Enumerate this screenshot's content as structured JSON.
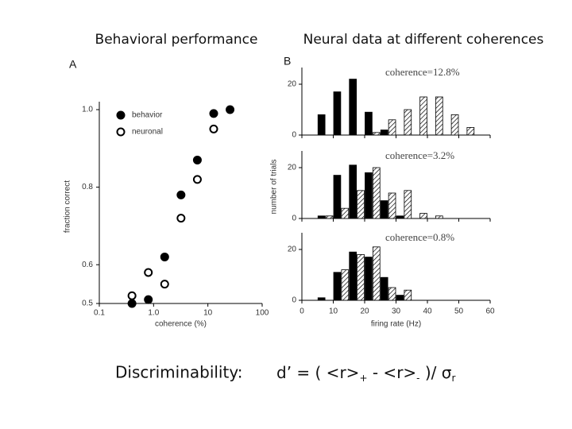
{
  "slide": {
    "titles": [
      "Behavioral performance",
      "Neural data at different coherences"
    ],
    "discriminability": "Discriminability:",
    "formula": [
      "d’ = ( <r>",
      "+",
      " - <r>",
      "-",
      " )/ σ",
      "r"
    ]
  },
  "chart_data": [
    {
      "type": "scatter",
      "panel_label": "A",
      "xlabel": "coherence (%)",
      "ylabel": "fraction correct",
      "xscale": "log",
      "xlim": [
        0.1,
        100
      ],
      "xticks": [
        0.1,
        {
          "value": 1,
          "label": "1.0"
        },
        10,
        100
      ],
      "ylim": [
        0.5,
        1.0
      ],
      "yticks": [
        0.5,
        0.6,
        0.8,
        {
          "value": 1,
          "label": "1.0"
        }
      ],
      "legend": "top-left",
      "series": [
        {
          "name": "behavior",
          "color": "#000000",
          "filled": true,
          "x": [
            0.4,
            0.8,
            1.6,
            3.2,
            6.4,
            12.8,
            25.6
          ],
          "values": [
            0.5,
            0.51,
            0.62,
            0.78,
            0.87,
            0.99,
            1.0
          ]
        },
        {
          "name": "neuronal",
          "color": "#000000",
          "filled": false,
          "x": [
            0.4,
            0.8,
            1.6,
            3.2,
            6.4,
            12.8
          ],
          "values": [
            0.52,
            0.58,
            0.55,
            0.72,
            0.82,
            0.95
          ]
        }
      ]
    },
    {
      "type": "histogram",
      "panel_label": "B",
      "annotation": "coherence=12.8%",
      "bins": [
        5,
        10,
        15,
        20,
        25,
        30,
        35,
        40,
        45,
        50,
        55,
        60
      ],
      "xlim": [
        0,
        60
      ],
      "xticks": [
        0,
        10,
        20,
        30,
        40,
        50,
        60
      ],
      "ylim": [
        0,
        25
      ],
      "yticks": [
        0,
        20
      ],
      "series": [
        {
          "color": "#000000",
          "hatch": false,
          "values": [
            8,
            17,
            22,
            9,
            2,
            0,
            0,
            0,
            0,
            0,
            0
          ]
        },
        {
          "color": "#000000",
          "hatch": true,
          "values": [
            0,
            0,
            0,
            1,
            6,
            10,
            15,
            15,
            8,
            3,
            0
          ]
        }
      ]
    },
    {
      "type": "histogram",
      "annotation": "coherence=3.2%",
      "ylabel": "number of trials",
      "bins": [
        5,
        10,
        15,
        20,
        25,
        30,
        35,
        40,
        45,
        50,
        55,
        60
      ],
      "xlim": [
        0,
        60
      ],
      "xticks": [
        0,
        10,
        20,
        30,
        40,
        50,
        60
      ],
      "ylim": [
        0,
        25
      ],
      "yticks": [
        0,
        20
      ],
      "series": [
        {
          "color": "#000000",
          "hatch": false,
          "values": [
            1,
            17,
            21,
            18,
            7,
            1,
            0,
            0,
            0,
            0,
            0
          ]
        },
        {
          "color": "#000000",
          "hatch": true,
          "values": [
            1,
            4,
            11,
            20,
            10,
            11,
            2,
            1,
            0,
            0,
            0
          ]
        }
      ]
    },
    {
      "type": "histogram",
      "annotation": "coherence=0.8%",
      "xlabel": "firing rate (Hz)",
      "show_xtick_labels": true,
      "bins": [
        5,
        10,
        15,
        20,
        25,
        30,
        35,
        40,
        45,
        50,
        55,
        60
      ],
      "xlim": [
        0,
        60
      ],
      "xticks": [
        0,
        10,
        20,
        30,
        40,
        50,
        60
      ],
      "ylim": [
        0,
        25
      ],
      "yticks": [
        0,
        20
      ],
      "series": [
        {
          "color": "#000000",
          "hatch": false,
          "values": [
            1,
            11,
            19,
            17,
            9,
            2,
            0,
            0,
            0,
            0,
            0
          ]
        },
        {
          "color": "#000000",
          "hatch": true,
          "values": [
            0,
            12,
            18,
            21,
            5,
            4,
            0,
            0,
            0,
            0,
            0
          ]
        }
      ]
    }
  ]
}
